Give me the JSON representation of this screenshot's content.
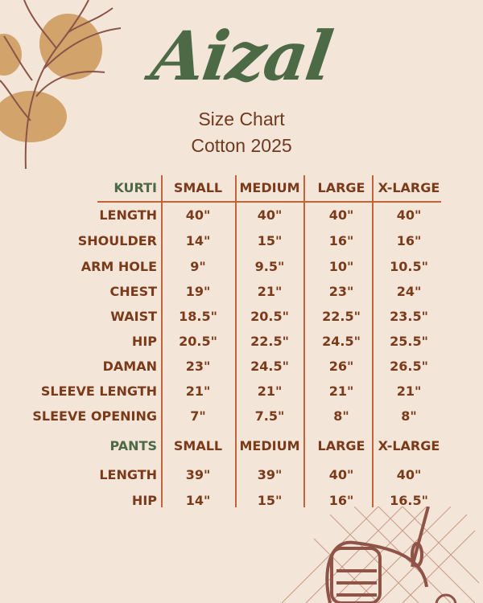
{
  "brand": "Aizal",
  "subtitle": "Size Chart",
  "collection": "Cotton 2025",
  "colors": {
    "background": "#f4e5d9",
    "header_green": "#4b6a45",
    "text_brown": "#7a3b1b",
    "rule": "#c4623c",
    "blob": "#d3a36c"
  },
  "sizes": [
    "SMALL",
    "MEDIUM",
    "LARGE",
    "X-LARGE"
  ],
  "kurti": {
    "title": "KURTI",
    "rows": [
      {
        "label": "LENGTH",
        "values": [
          "40\"",
          "40\"",
          "40\"",
          "40\""
        ]
      },
      {
        "label": "SHOULDER",
        "values": [
          "14\"",
          "15\"",
          "16\"",
          "16\""
        ]
      },
      {
        "label": "ARM HOLE",
        "values": [
          "9\"",
          "9.5\"",
          "10\"",
          "10.5\""
        ]
      },
      {
        "label": "CHEST",
        "values": [
          "19\"",
          "21\"",
          "23\"",
          "24\""
        ]
      },
      {
        "label": "WAIST",
        "values": [
          "18.5\"",
          "20.5\"",
          "22.5\"",
          "23.5\""
        ]
      },
      {
        "label": "HIP",
        "values": [
          "20.5\"",
          "22.5\"",
          "24.5\"",
          "25.5\""
        ]
      },
      {
        "label": "DAMAN",
        "values": [
          "23\"",
          "24.5\"",
          "26\"",
          "26.5\""
        ]
      },
      {
        "label": "SLEEVE LENGTH",
        "values": [
          "21\"",
          "21\"",
          "21\"",
          "21\""
        ]
      },
      {
        "label": "SLEEVE OPENING",
        "values": [
          "7\"",
          "7.5\"",
          "8\"",
          "8\""
        ]
      }
    ]
  },
  "pants": {
    "title": "PANTS",
    "rows": [
      {
        "label": "LENGTH",
        "values": [
          "39\"",
          "39\"",
          "40\"",
          "40\""
        ]
      },
      {
        "label": "HIP",
        "values": [
          "14\"",
          "15\"",
          "16\"",
          "16.5\""
        ]
      }
    ]
  },
  "decor": {
    "top_left": "branch-with-leaves-icon",
    "bottom_right": "thread-spool-needle-icon"
  }
}
